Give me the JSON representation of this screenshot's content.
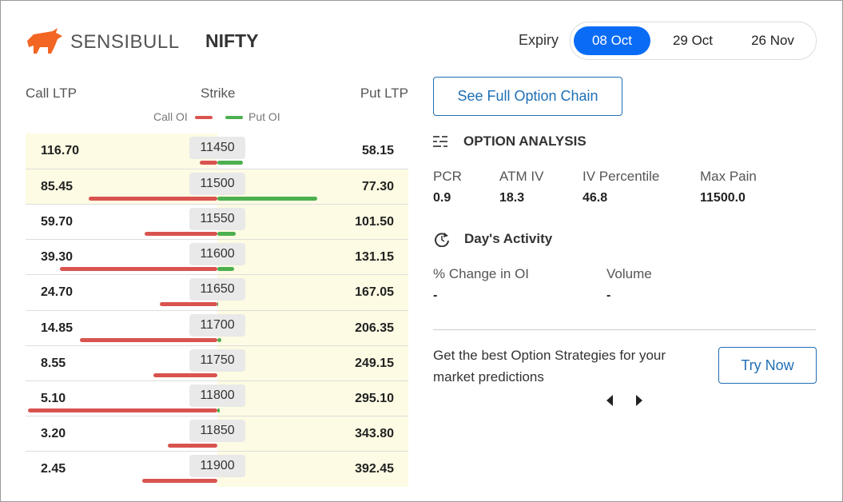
{
  "header": {
    "brand": "SENSIBULL",
    "symbol": "NIFTY",
    "expiry_label": "Expiry",
    "expiries": [
      "08 Oct",
      "29 Oct",
      "26 Nov"
    ],
    "selected_expiry": 0
  },
  "chain": {
    "headers": [
      "Call LTP",
      "Strike",
      "Put LTP"
    ],
    "legend": [
      "Call OI",
      "Put OI"
    ],
    "colors": {
      "call": "#d9534f",
      "put": "#4caf50"
    },
    "rows": [
      {
        "call_ltp": "116.70",
        "strike": "11450",
        "put_ltp": "58.15",
        "call_oi": 22,
        "put_oi": 32
      },
      {
        "call_ltp": "85.45",
        "strike": "11500",
        "put_ltp": "77.30",
        "call_oi": 161,
        "put_oi": 125
      },
      {
        "call_ltp": "59.70",
        "strike": "11550",
        "put_ltp": "101.50",
        "call_oi": 91,
        "put_oi": 23
      },
      {
        "call_ltp": "39.30",
        "strike": "11600",
        "put_ltp": "131.15",
        "call_oi": 197,
        "put_oi": 21
      },
      {
        "call_ltp": "24.70",
        "strike": "11650",
        "put_ltp": "167.05",
        "call_oi": 72,
        "put_oi": 1
      },
      {
        "call_ltp": "14.85",
        "strike": "11700",
        "put_ltp": "206.35",
        "call_oi": 172,
        "put_oi": 5
      },
      {
        "call_ltp": "8.55",
        "strike": "11750",
        "put_ltp": "249.15",
        "call_oi": 80,
        "put_oi": 0
      },
      {
        "call_ltp": "5.10",
        "strike": "11800",
        "put_ltp": "295.10",
        "call_oi": 237,
        "put_oi": 3
      },
      {
        "call_ltp": "3.20",
        "strike": "11850",
        "put_ltp": "343.80",
        "call_oi": 62,
        "put_oi": 0
      },
      {
        "call_ltp": "2.45",
        "strike": "11900",
        "put_ltp": "392.45",
        "call_oi": 94,
        "put_oi": 0
      }
    ]
  },
  "see_full": "See Full Option Chain",
  "analysis": {
    "title": "OPTION ANALYSIS",
    "metrics": [
      {
        "label": "PCR",
        "value": "0.9"
      },
      {
        "label": "ATM IV",
        "value": "18.3"
      },
      {
        "label": "IV Percentile",
        "value": "46.8"
      },
      {
        "label": "Max Pain",
        "value": "11500.0"
      }
    ]
  },
  "activity": {
    "title": "Day's Activity",
    "metrics": [
      {
        "label": "% Change in OI",
        "value": "-"
      },
      {
        "label": "Volume",
        "value": "-"
      }
    ]
  },
  "promo": {
    "text": "Get the best Option Strategies for your market predictions",
    "button": "Try Now"
  }
}
